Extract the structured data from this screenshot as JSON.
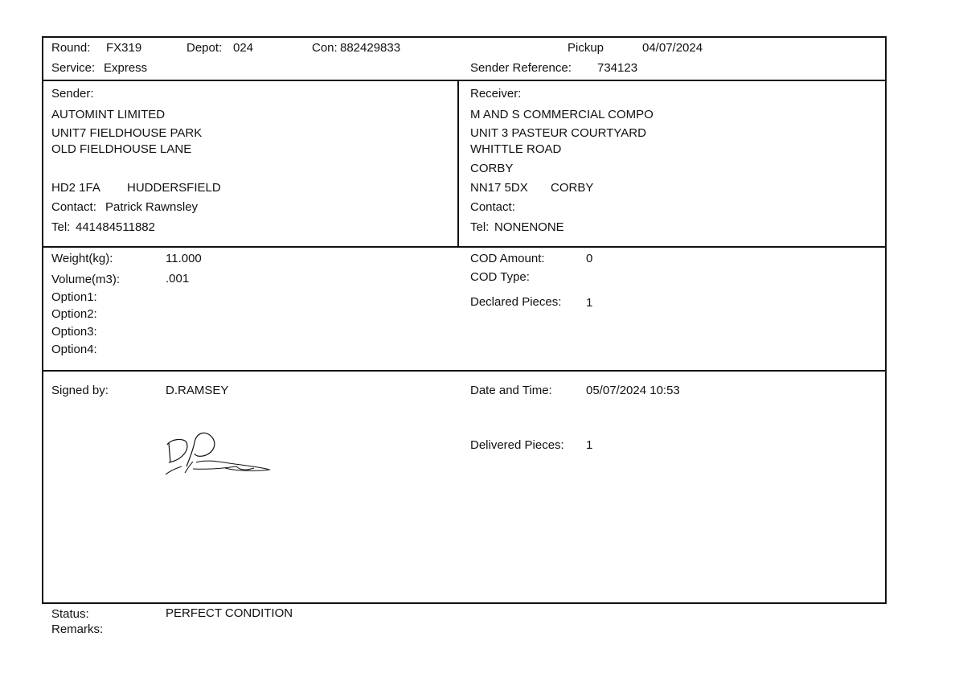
{
  "header": {
    "round_label": "Round:",
    "round": "FX319",
    "depot_label": "Depot:",
    "depot": "024",
    "con_label": "Con:",
    "con": "882429833",
    "service_label": "Service:",
    "service": "Express",
    "pickup_label": "Pickup",
    "pickup_date": "04/07/2024",
    "sender_ref_label": "Sender Reference:",
    "sender_ref": "734123"
  },
  "sender": {
    "heading": "Sender:",
    "lines": [
      "AUTOMINT LIMITED",
      "UNIT7 FIELDHOUSE PARK",
      "OLD FIELDHOUSE LANE"
    ],
    "postcode": "HD2 1FA",
    "town": "HUDDERSFIELD",
    "contact_label": "Contact:",
    "contact": "Patrick Rawnsley",
    "tel_label": "Tel:",
    "tel": "441484511882"
  },
  "receiver": {
    "heading": "Receiver:",
    "lines": [
      "M AND S COMMERCIAL COMPO",
      "UNIT 3 PASTEUR COURTYARD",
      "WHITTLE ROAD",
      "CORBY"
    ],
    "postcode": "NN17 5DX",
    "town": "CORBY",
    "contact_label": "Contact:",
    "contact": "",
    "tel_label": "Tel:",
    "tel": "NONENONE"
  },
  "details": {
    "weight_label": "Weight(kg):",
    "weight": "11.000",
    "volume_label": "Volume(m3):",
    "volume": ".001",
    "options": [
      "Option1:",
      "Option2:",
      "Option3:",
      "Option4:"
    ],
    "cod_amount_label": "COD Amount:",
    "cod_amount": "0",
    "cod_type_label": "COD Type:",
    "declared_label": "Declared Pieces:",
    "declared": "1"
  },
  "delivery": {
    "signed_label": "Signed by:",
    "signed_by": "D.RAMSEY",
    "datetime_label": "Date and Time:",
    "datetime": "05/07/2024 10:53",
    "delivered_label": "Delivered Pieces:",
    "delivered": "1"
  },
  "footer": {
    "status_label": "Status:",
    "status": "PERFECT CONDITION",
    "remarks_label": "Remarks:"
  }
}
